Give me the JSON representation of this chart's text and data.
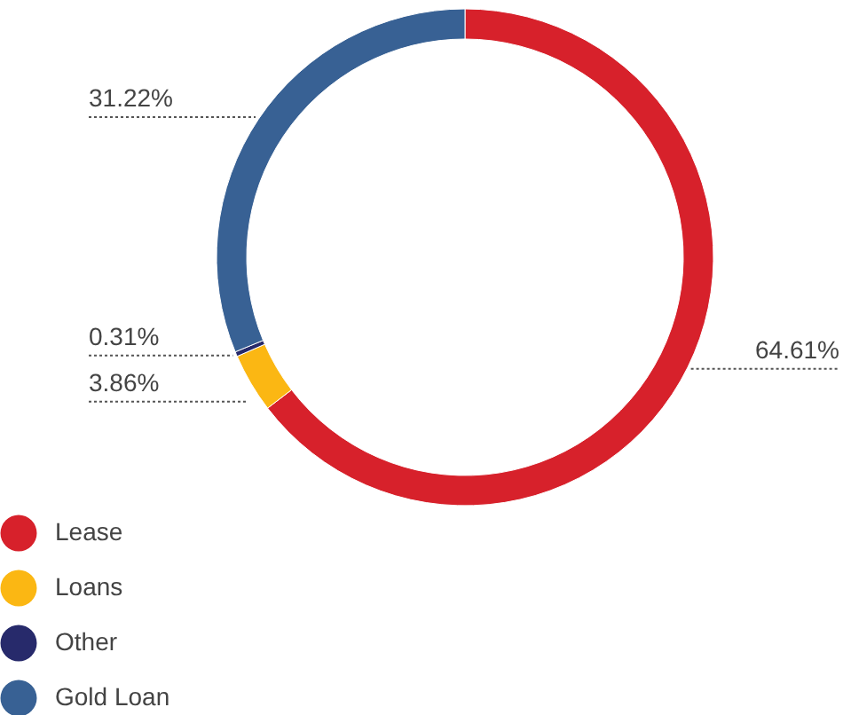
{
  "chart_data": {
    "type": "donut",
    "categories": [
      "Lease",
      "Loans",
      "Other",
      "Gold Loan"
    ],
    "values": [
      64.61,
      3.86,
      0.31,
      31.22
    ],
    "colors": [
      "#d7212b",
      "#fbb713",
      "#272a6b",
      "#386194"
    ],
    "value_labels": [
      "64.61%",
      "3.86%",
      "0.31%",
      "31.22%"
    ],
    "legend": "bottom left"
  }
}
